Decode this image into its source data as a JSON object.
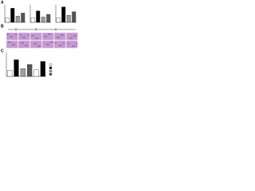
{
  "panels": [
    {
      "label": "A",
      "charts": [
        {
          "values": [
            1,
            3.2,
            1.4,
            2.1
          ],
          "colors": [
            "#ffffff",
            "#000000",
            "#9e9e9e",
            "#555555"
          ],
          "ylim": [
            0,
            4
          ]
        },
        {
          "values": [
            1,
            2.6,
            1.2,
            1.8
          ],
          "colors": [
            "#ffffff",
            "#000000",
            "#9e9e9e",
            "#555555"
          ],
          "ylim": [
            0,
            4
          ]
        },
        {
          "values": [
            1,
            3.5,
            1.6,
            2.4
          ],
          "colors": [
            "#ffffff",
            "#000000",
            "#9e9e9e",
            "#555555"
          ],
          "ylim": [
            0,
            4
          ]
        }
      ]
    },
    {
      "label": "B"
    },
    {
      "label": "C",
      "charts": [
        {
          "values": [
            1,
            2.8,
            1.3,
            2.0,
            1.1,
            2.5
          ],
          "colors": [
            "#ffffff",
            "#000000",
            "#9e9e9e",
            "#555555",
            "#ffffff",
            "#000000"
          ],
          "ylim": [
            0,
            4
          ]
        }
      ]
    }
  ]
}
